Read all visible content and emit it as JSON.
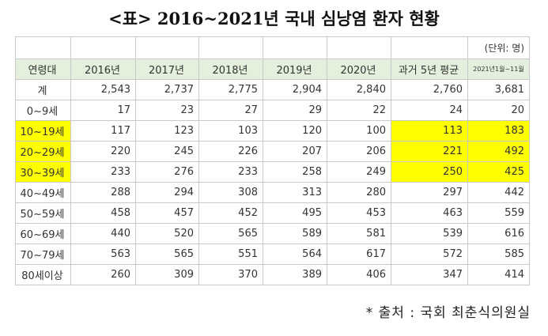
{
  "title": "<표> 2016~2021년 국내 심낭염 환자 현황",
  "unit": "(단위: 명)",
  "headers": [
    "연령대",
    "2016년",
    "2017년",
    "2018년",
    "2019년",
    "2020년",
    "과거 5년 평균",
    "2021년1월~11월"
  ],
  "rows": [
    {
      "label": "계",
      "values": [
        "2,543",
        "2,737",
        "2,775",
        "2,904",
        "2,840",
        "2,760",
        "3,681"
      ]
    },
    {
      "label": "0~9세",
      "values": [
        "17",
        "23",
        "27",
        "29",
        "22",
        "24",
        "20"
      ]
    },
    {
      "label": "10~19세",
      "values": [
        "117",
        "123",
        "103",
        "120",
        "100",
        "113",
        "183"
      ]
    },
    {
      "label": "20~29세",
      "values": [
        "220",
        "245",
        "226",
        "207",
        "206",
        "221",
        "492"
      ]
    },
    {
      "label": "30~39세",
      "values": [
        "233",
        "276",
        "233",
        "258",
        "249",
        "250",
        "425"
      ]
    },
    {
      "label": "40~49세",
      "values": [
        "288",
        "294",
        "308",
        "313",
        "280",
        "297",
        "442"
      ]
    },
    {
      "label": "50~59세",
      "values": [
        "458",
        "457",
        "452",
        "495",
        "453",
        "463",
        "559"
      ]
    },
    {
      "label": "60~69세",
      "values": [
        "440",
        "520",
        "565",
        "589",
        "581",
        "539",
        "616"
      ]
    },
    {
      "label": "70~79세",
      "values": [
        "563",
        "565",
        "551",
        "564",
        "617",
        "572",
        "585"
      ]
    },
    {
      "label": "80세이상",
      "values": [
        "260",
        "309",
        "370",
        "389",
        "406",
        "347",
        "414"
      ]
    }
  ],
  "highlight_color": "#ffff00",
  "source": "* 출처 : 국회 최춘식의원실"
}
